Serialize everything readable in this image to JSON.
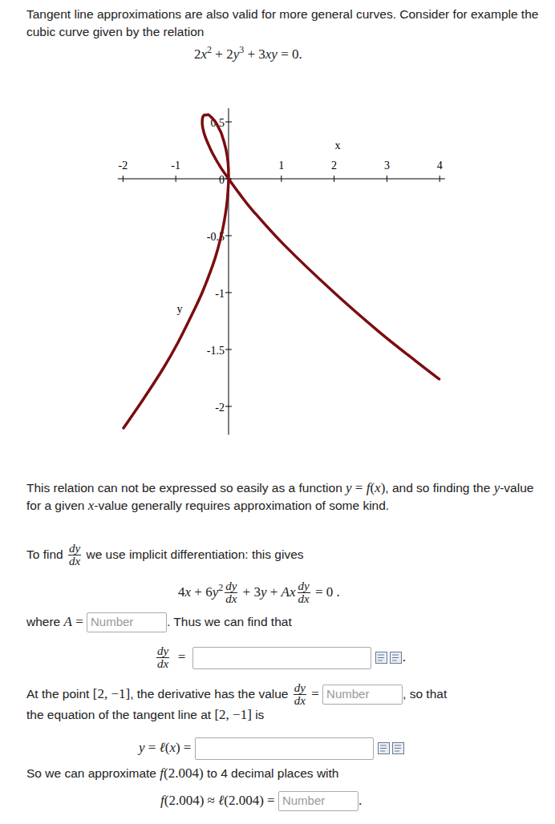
{
  "document": {
    "blocks": [
      {
        "parts": [
          {
            "t": "Tangent line approximations are also valid for more general curves. Consider for example the cubic curve given by the relation"
          }
        ]
      },
      {
        "parts": [
          {
            "r": "2"
          },
          {
            "i": "x"
          },
          {
            "sup": "2"
          },
          {
            "r": " + 2"
          },
          {
            "i": "y"
          },
          {
            "sup": "3"
          },
          {
            "r": " + 3"
          },
          {
            "i": "xy"
          },
          {
            "r": " = 0."
          }
        ]
      },
      {
        "parts": [
          {
            "t": "This relation can not be expressed so easily as a function "
          },
          {
            "i": "y"
          },
          {
            "r": " = "
          },
          {
            "i": "f"
          },
          {
            "r": "("
          },
          {
            "i": "x"
          },
          {
            "r": ")"
          },
          {
            "t": ", and so finding the "
          },
          {
            "i": "y"
          },
          {
            "t": "-value for a given "
          },
          {
            "i": "x"
          },
          {
            "t": "-value generally requires approximation of some kind."
          }
        ]
      },
      {
        "parts": [
          {
            "t": "To find "
          },
          {
            "frac": [
              "dy",
              "dx"
            ]
          },
          {
            "t": " we use implicit differentiation: this gives"
          }
        ]
      },
      {
        "parts": [
          {
            "r": "4"
          },
          {
            "i": "x"
          },
          {
            "r": " + 6"
          },
          {
            "i": "y"
          },
          {
            "sup": "2"
          },
          {
            "frac": [
              "dy",
              "dx"
            ]
          },
          {
            "r": " + 3"
          },
          {
            "i": "y"
          },
          {
            "r": " + "
          },
          {
            "i": "Ax"
          },
          {
            "frac": [
              "dy",
              "dx"
            ]
          },
          {
            "r": " = 0 ."
          }
        ]
      },
      {
        "parts": [
          {
            "t": "where "
          },
          {
            "i": "A"
          },
          {
            "r": " = "
          },
          {
            "input": "Number"
          },
          {
            "t": ". Thus we can find that"
          }
        ]
      },
      {
        "parts": [
          {
            "frac": [
              "dy",
              "dx"
            ]
          },
          {
            "r": "  =  "
          },
          {
            "field": true
          },
          {
            "icons": true
          },
          {
            "r": "."
          }
        ]
      },
      {
        "parts": [
          {
            "t": "At the point "
          },
          {
            "r": "[2, −1]"
          },
          {
            "t": ", the derivative has the value "
          },
          {
            "frac": [
              "dy",
              "dx"
            ]
          },
          {
            "r": " = "
          },
          {
            "input": "Number"
          },
          {
            "t": ", so that"
          }
        ]
      },
      {
        "parts": [
          {
            "t": "the equation of the tangent line at "
          },
          {
            "r": "[2, −1]"
          },
          {
            "t": " is"
          }
        ]
      },
      {
        "parts": [
          {
            "i": "y"
          },
          {
            "r": " = "
          },
          {
            "i": "ℓ"
          },
          {
            "r": "("
          },
          {
            "i": "x"
          },
          {
            "r": ") = "
          },
          {
            "field": true
          },
          {
            "icons": true
          }
        ]
      },
      {
        "parts": [
          {
            "t": "So we can approximate "
          },
          {
            "i": "f"
          },
          {
            "r": "(2.004)"
          },
          {
            "t": " to 4 decimal places with"
          }
        ]
      },
      {
        "parts": [
          {
            "i": "f"
          },
          {
            "r": "(2.004) ≈ "
          },
          {
            "i": "ℓ"
          },
          {
            "r": "(2.004) = "
          },
          {
            "input": "Number"
          },
          {
            "r": "."
          }
        ]
      }
    ]
  },
  "chart_data": {
    "type": "line",
    "xlabel": "x",
    "ylabel": "y",
    "color": "#7b0d10",
    "x": [
      -1.99,
      -1.62,
      -1.23,
      -0.96,
      -0.68,
      -0.5,
      -0.3,
      -0.2,
      -0.11,
      -0.05,
      -0.02,
      0,
      -0.01,
      -0.05,
      -0.13,
      -0.18,
      -0.25,
      -0.37,
      -0.42,
      -0.46,
      -0.49,
      -0.5,
      -0.49,
      -0.45,
      -0.39,
      -0.3,
      -0.15,
      0,
      0.22,
      0.46,
      1.05,
      2.0,
      2.84,
      3.57,
      3.99
    ],
    "values": [
      -2.19,
      -1.94,
      -1.66,
      -1.44,
      -1.18,
      -1.0,
      -0.76,
      -0.61,
      -0.44,
      -0.28,
      -0.16,
      0,
      0.14,
      0.26,
      0.39,
      0.44,
      0.5,
      0.56,
      0.56,
      0.56,
      0.54,
      0.5,
      0.45,
      0.38,
      0.31,
      0.22,
      0.1,
      0,
      -0.14,
      -0.28,
      -0.58,
      -1.0,
      -1.34,
      -1.61,
      -1.76
    ],
    "xlim": [
      -2.1,
      4.1
    ],
    "ylim": [
      -2.25,
      0.62
    ],
    "xticks": [
      -2,
      -1,
      1,
      2,
      3,
      4
    ],
    "yticks": [
      0.5,
      0,
      -0.5,
      -1,
      -1.5,
      -2
    ],
    "grid": false
  }
}
